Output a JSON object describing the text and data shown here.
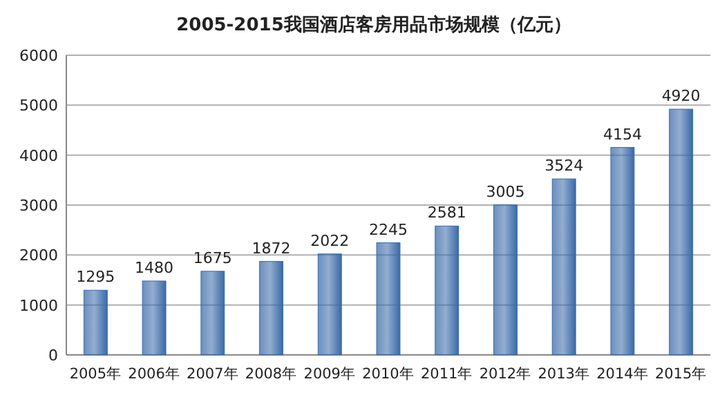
{
  "chart_data": {
    "type": "bar",
    "title": "2005-2015我国酒店客房用品市场规模（亿元）",
    "categories": [
      "2005年",
      "2006年",
      "2007年",
      "2008年",
      "2009年",
      "2010年",
      "2011年",
      "2012年",
      "2013年",
      "2014年",
      "2015年"
    ],
    "values": [
      1295,
      1480,
      1675,
      1872,
      2022,
      2245,
      2581,
      3005,
      3524,
      4154,
      4920
    ],
    "color": "#3a6aa8",
    "ylim": [
      0,
      6000
    ],
    "yticks": [
      0,
      1000,
      2000,
      3000,
      4000,
      5000,
      6000
    ],
    "grid": "y",
    "data_labels": true
  }
}
